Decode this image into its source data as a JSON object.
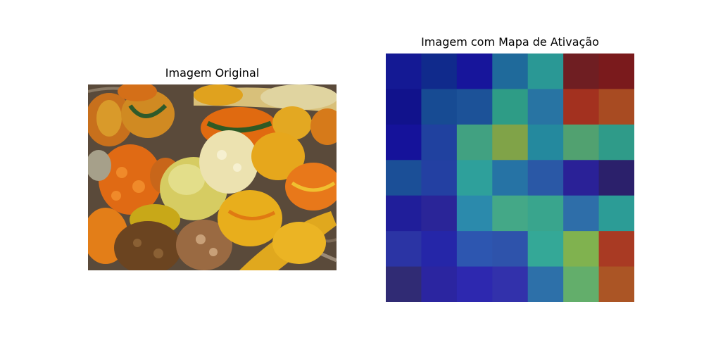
{
  "left_panel": {
    "title": "Imagem Original",
    "image": "photo of assorted ornamental gourds in a wicker basket"
  },
  "chart_data": {
    "type": "heatmap",
    "title": "Imagem com Mapa de Ativação",
    "colormap": "jet (semi-transparent overlay)",
    "rows": 7,
    "cols": 7,
    "axes_visible": false,
    "colors": [
      [
        "#141994",
        "#102a8c",
        "#17159b",
        "#1f6a9b",
        "#2a9895",
        "#6f1e22",
        "#7a1a1c"
      ],
      [
        "#11128c",
        "#174b93",
        "#1c5298",
        "#2e9c86",
        "#2874a3",
        "#a3311f",
        "#a84b22"
      ],
      [
        "#15129a",
        "#20419f",
        "#41a181",
        "#80a348",
        "#24899e",
        "#51a170",
        "#2f9b89"
      ],
      [
        "#1b4f97",
        "#2340a2",
        "#2ea09b",
        "#2673a5",
        "#2a58a6",
        "#2a2197",
        "#2b206b"
      ],
      [
        "#201e9a",
        "#2a2598",
        "#2b8aac",
        "#44a887",
        "#39a58d",
        "#2e6ea9",
        "#2c9c96"
      ],
      [
        "#2b34a4",
        "#2526a8",
        "#2d56b0",
        "#2e53ab",
        "#34a897",
        "#80b24f",
        "#a93a23"
      ],
      [
        "#302b74",
        "#2b25a0",
        "#2d28af",
        "#3231ab",
        "#2d70a9",
        "#63ae6b",
        "#ab5525"
      ]
    ]
  }
}
